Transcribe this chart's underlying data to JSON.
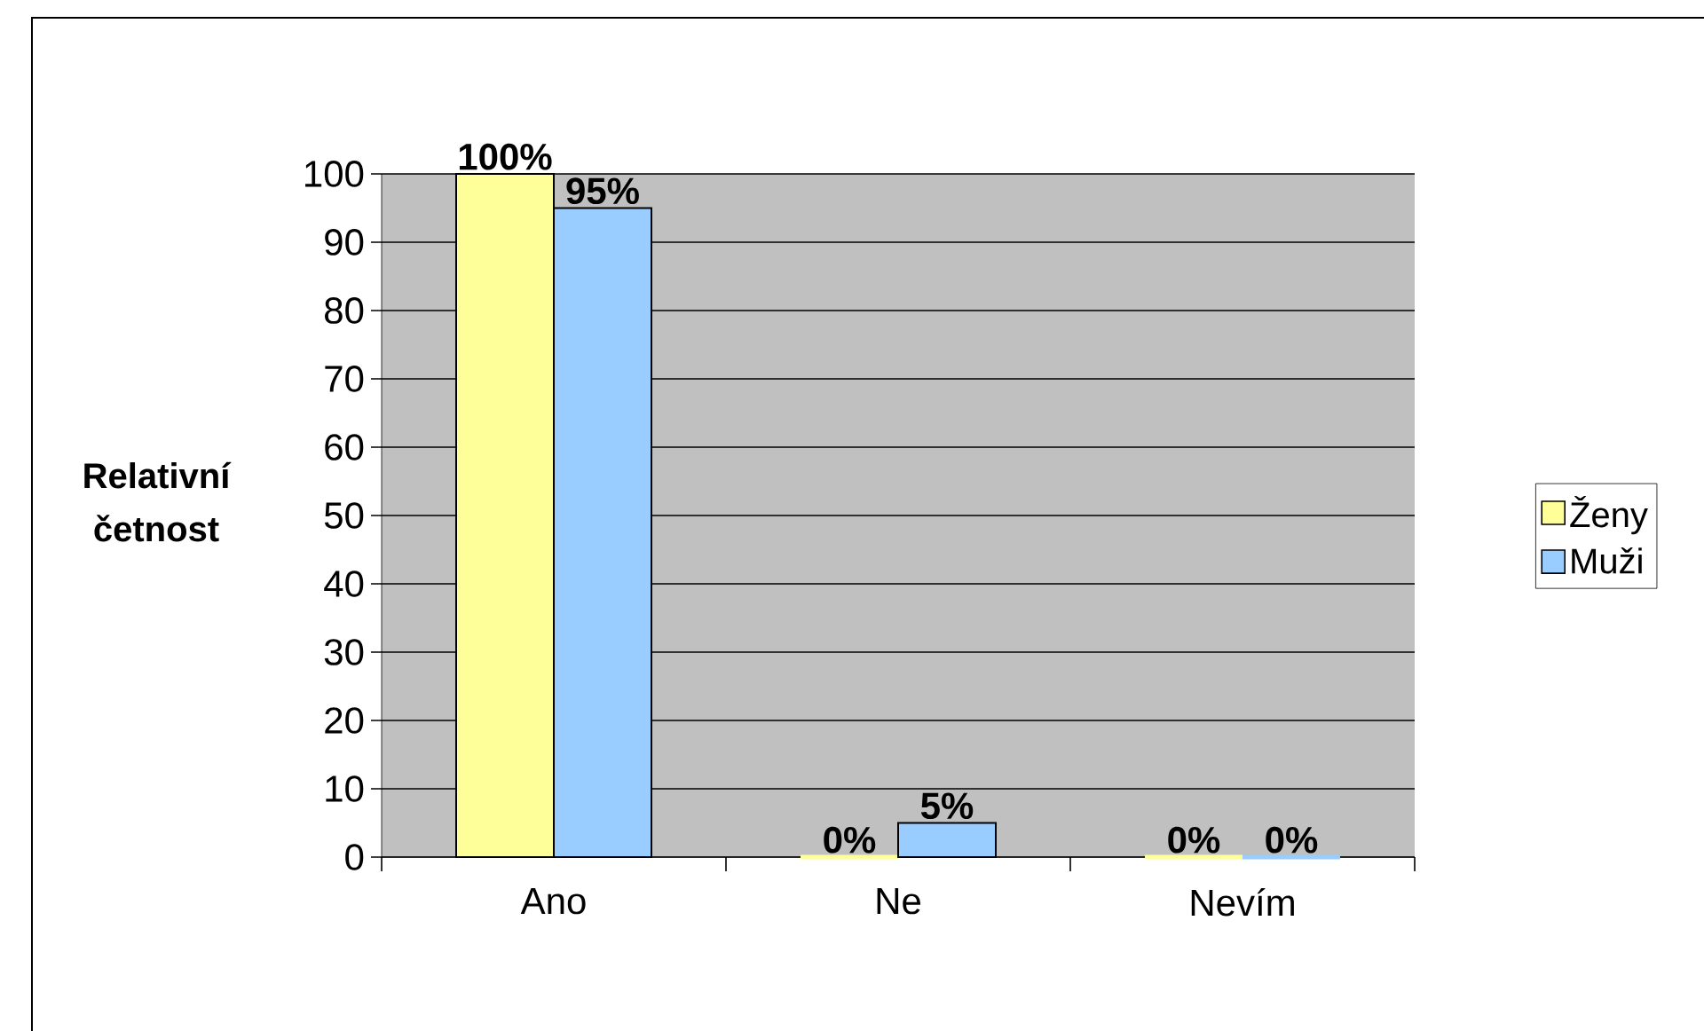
{
  "chart_data": {
    "type": "bar",
    "ylabel": "Relativní četnost",
    "categories": [
      "Ano",
      "Ne",
      "Nevím"
    ],
    "series": [
      {
        "name": "Ženy",
        "color": "#ffff99",
        "values": [
          100,
          0,
          0
        ],
        "value_labels": [
          "100%",
          "0%",
          "0%"
        ]
      },
      {
        "name": "Muži",
        "color": "#99ccff",
        "values": [
          95,
          5,
          0
        ],
        "value_labels": [
          "95%",
          "5%",
          "0%"
        ]
      }
    ],
    "ylim": [
      0,
      100
    ],
    "yticks": [
      0,
      10,
      20,
      30,
      40,
      50,
      60,
      70,
      80,
      90,
      100
    ],
    "grid": "y",
    "legend": "right"
  }
}
